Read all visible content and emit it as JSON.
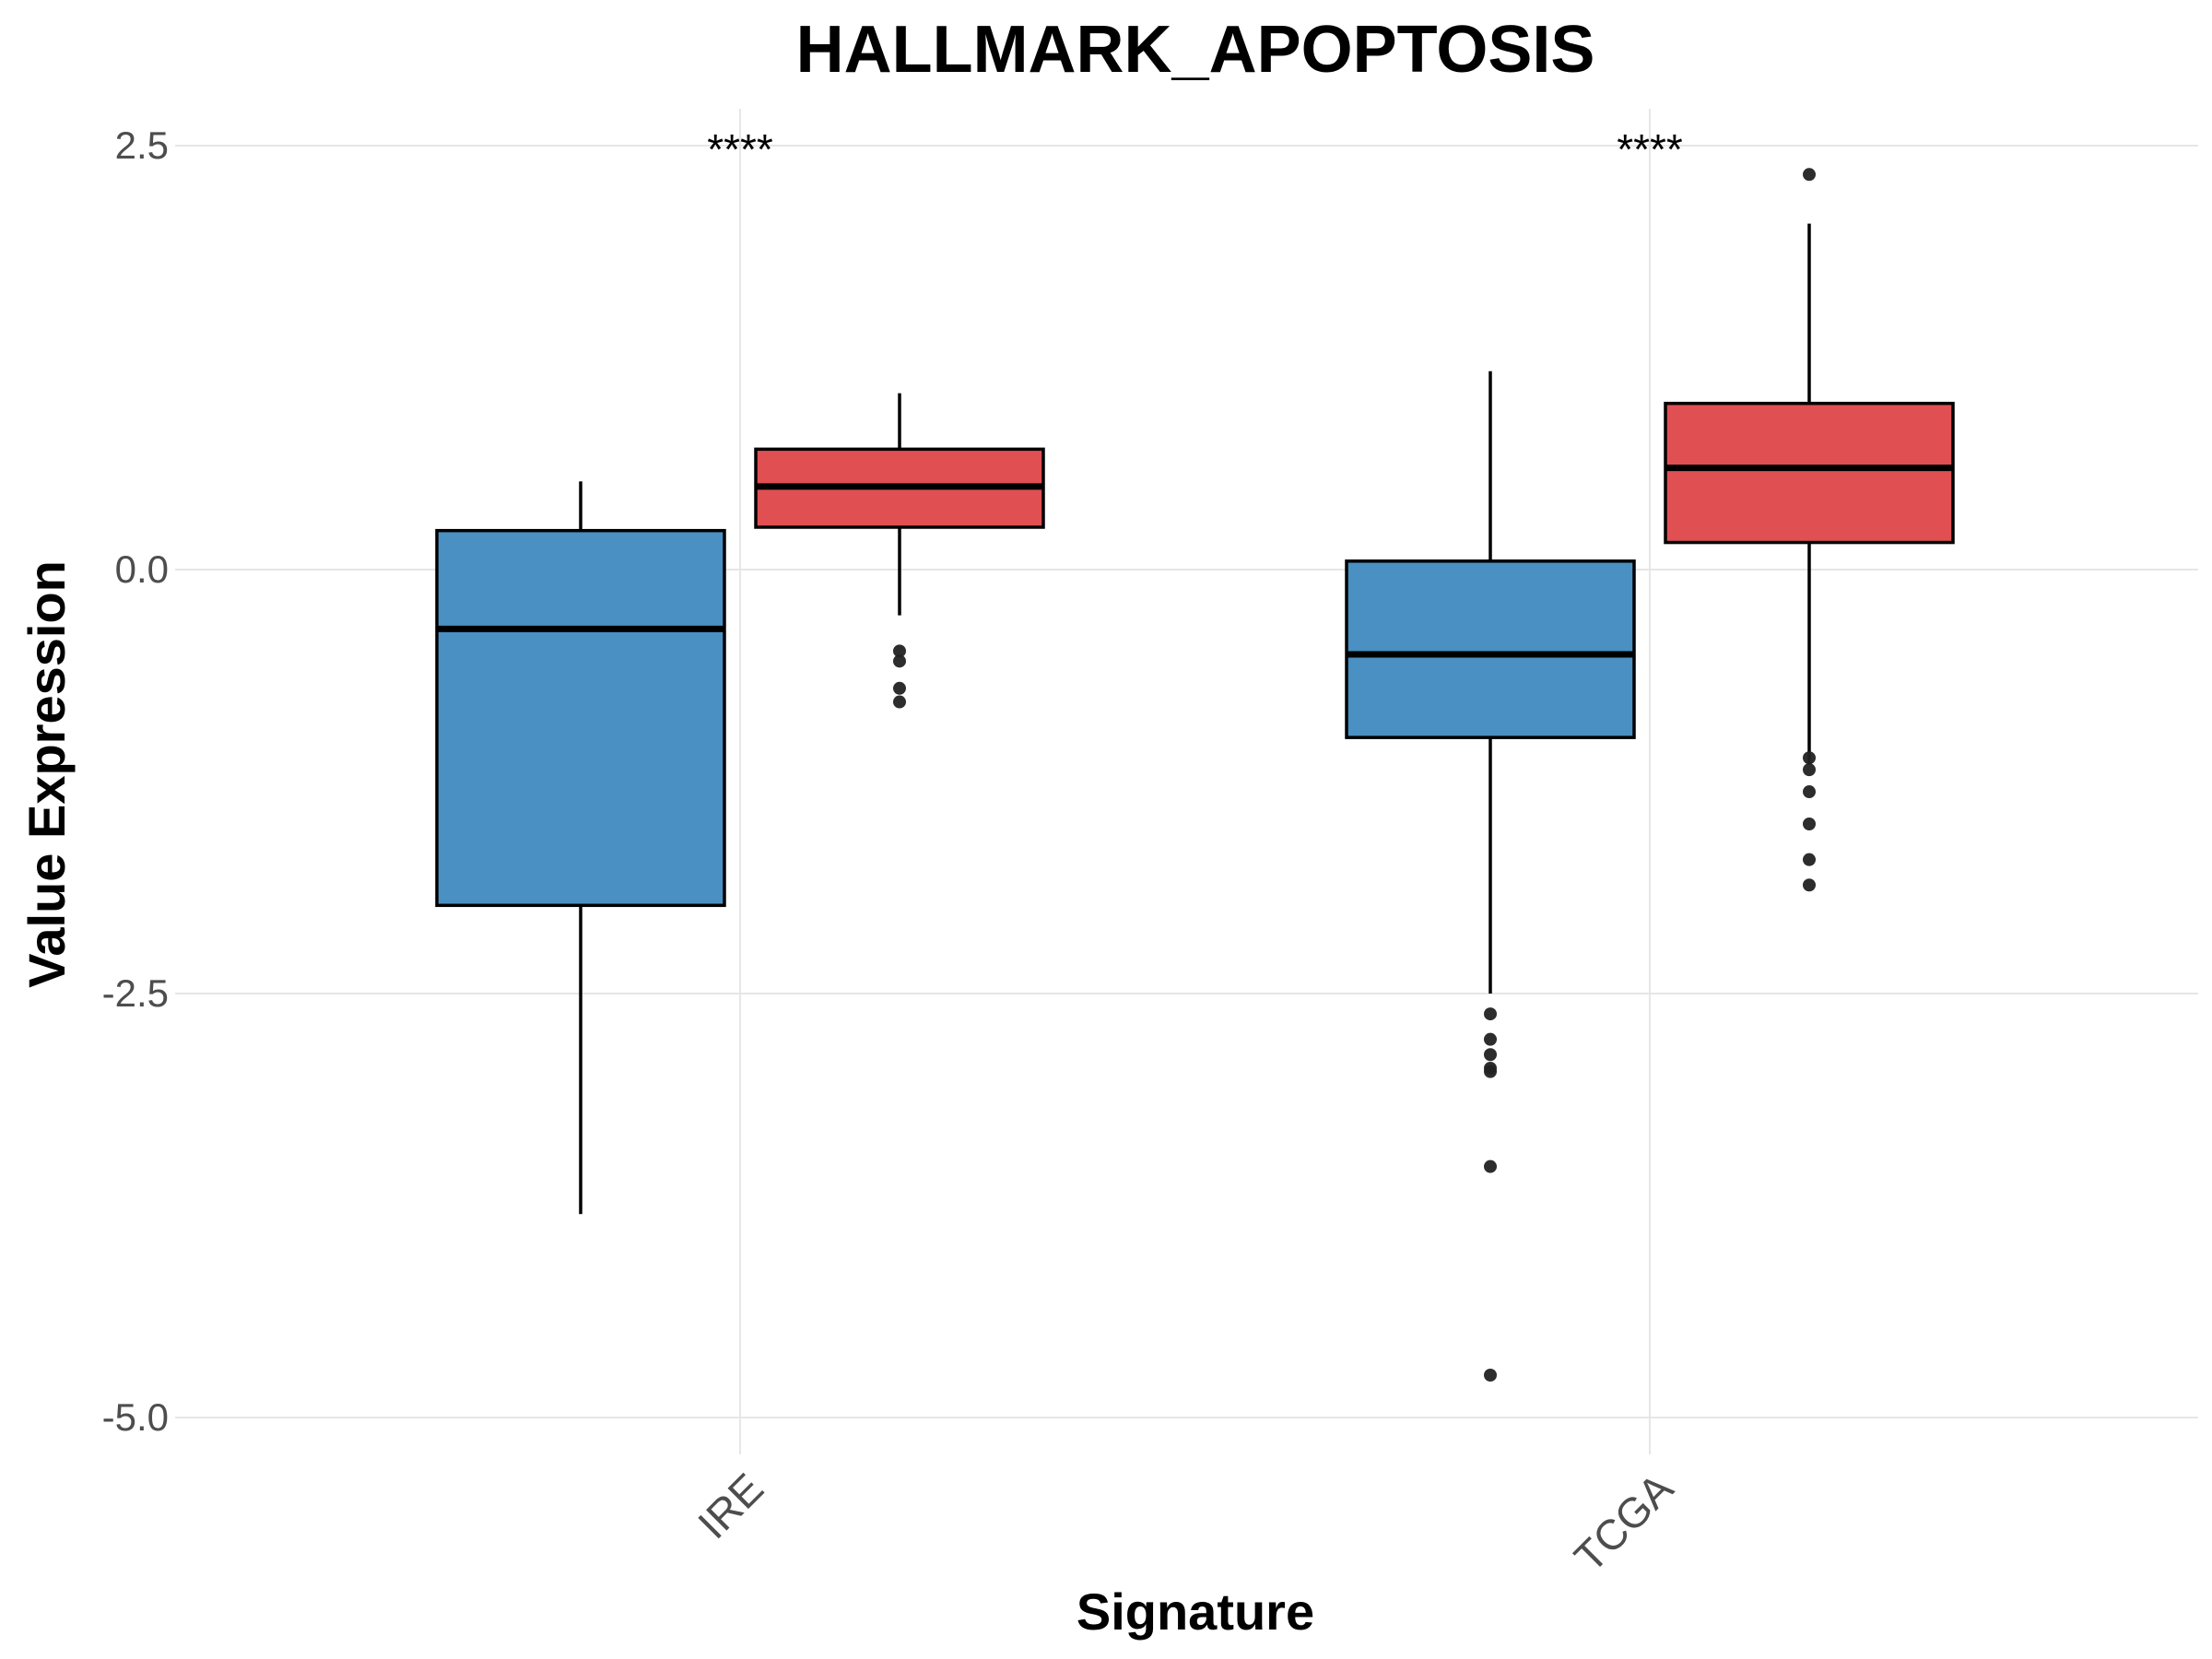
{
  "chart_data": {
    "type": "box",
    "title": "HALLMARK_APOPTOSIS",
    "xlabel": "Signature",
    "ylabel": "Value Expression",
    "categories": [
      "IRE",
      "TCGA"
    ],
    "ylim": [
      -5.1,
      2.7
    ],
    "yticks": [
      2.5,
      0.0,
      -2.5,
      -5.0
    ],
    "ytick_labels": [
      "2.5",
      "0.0",
      "-2.5",
      "-5.0"
    ],
    "grid": true,
    "legend": "none",
    "series": [
      {
        "color": "#4A90C2",
        "boxes": [
          {
            "category": "IRE",
            "q1": -1.98,
            "median": -0.35,
            "q3": 0.23,
            "whisker_low": -3.8,
            "whisker_high": 0.52,
            "outliers": []
          },
          {
            "category": "TCGA",
            "q1": -0.99,
            "median": -0.5,
            "q3": 0.05,
            "whisker_low": -2.5,
            "whisker_high": 1.17,
            "outliers": [
              -2.62,
              -2.77,
              -2.86,
              -2.94,
              -2.96,
              -3.52,
              -4.75
            ]
          }
        ]
      },
      {
        "color": "#E05053",
        "boxes": [
          {
            "category": "IRE",
            "q1": 0.25,
            "median": 0.49,
            "q3": 0.71,
            "whisker_low": -0.27,
            "whisker_high": 1.04,
            "outliers": [
              -0.48,
              -0.54,
              -0.7,
              -0.78
            ]
          },
          {
            "category": "TCGA",
            "q1": 0.16,
            "median": 0.6,
            "q3": 0.98,
            "whisker_low": -1.15,
            "whisker_high": 2.04,
            "outliers": [
              2.33,
              -1.11,
              -1.18,
              -1.31,
              -1.5,
              -1.71,
              -1.86
            ]
          }
        ]
      }
    ],
    "annotations": [
      {
        "category": "IRE",
        "text": "****"
      },
      {
        "category": "TCGA",
        "text": "****"
      }
    ]
  }
}
